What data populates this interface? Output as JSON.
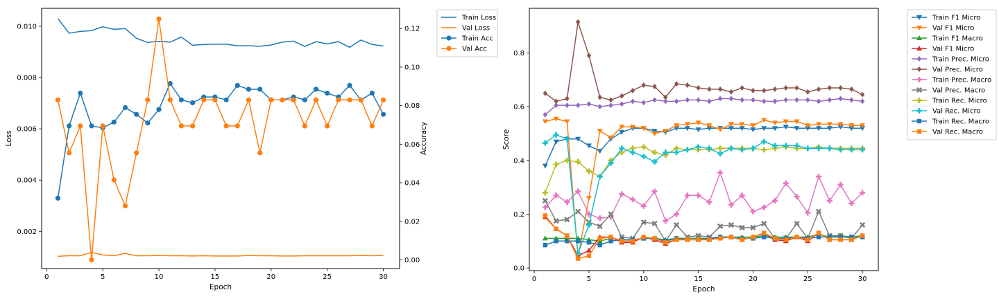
{
  "chart_data": [
    {
      "type": "line",
      "xlabel": "Epoch",
      "ylabel": "Loss",
      "ylabel_right": "Accuracy",
      "xlim": [
        -0.45,
        31.45
      ],
      "ylim": [
        0.00055,
        0.0107
      ],
      "ylim_right": [
        -0.0045,
        0.1305
      ],
      "xticks": [
        0,
        5,
        10,
        15,
        20,
        25,
        30
      ],
      "yticks": [
        0.002,
        0.004,
        0.006,
        0.008,
        0.01
      ],
      "ytick_labels": [
        "0.002",
        "0.004",
        "0.006",
        "0.008",
        "0.010"
      ],
      "yticks_right": [
        0.0,
        0.02,
        0.04,
        0.06,
        0.08,
        0.1,
        0.12
      ],
      "ytick_labels_right": [
        "0.00",
        "0.02",
        "0.04",
        "0.06",
        "0.08",
        "0.10",
        "0.12"
      ],
      "grid": false,
      "legend": "outside upper right",
      "x": [
        1,
        2,
        3,
        4,
        5,
        6,
        7,
        8,
        9,
        10,
        11,
        12,
        13,
        14,
        15,
        16,
        17,
        18,
        19,
        20,
        21,
        22,
        23,
        24,
        25,
        26,
        27,
        28,
        29,
        30
      ],
      "series": [
        {
          "name": "Train Loss",
          "axis": "left",
          "color": "#1f77b4",
          "marker": "none",
          "values": [
            0.0103,
            0.00973,
            0.0098,
            0.00983,
            0.00998,
            0.00988,
            0.00991,
            0.00953,
            0.00937,
            0.00941,
            0.00938,
            0.00958,
            0.00926,
            0.00929,
            0.0093,
            0.0093,
            0.00924,
            0.00924,
            0.00922,
            0.00927,
            0.00938,
            0.00942,
            0.00921,
            0.0094,
            0.00931,
            0.0094,
            0.00918,
            0.00946,
            0.00929,
            0.00923
          ]
        },
        {
          "name": "Val Loss",
          "axis": "left",
          "color": "#ff7f0e",
          "marker": "none",
          "values": [
            0.00103,
            0.00105,
            0.00105,
            0.00118,
            0.00108,
            0.00105,
            0.00114,
            0.00105,
            0.00105,
            0.00106,
            0.00105,
            0.00105,
            0.00104,
            0.00105,
            0.00104,
            0.00104,
            0.00104,
            0.00106,
            0.00105,
            0.00105,
            0.00104,
            0.00104,
            0.00105,
            0.00105,
            0.00105,
            0.00105,
            0.00105,
            0.00106,
            0.00105,
            0.00106
          ]
        },
        {
          "name": "Train Acc",
          "axis": "right",
          "color": "#1f77b4",
          "marker": "circle",
          "values": [
            0.032,
            0.0695,
            0.0865,
            0.0695,
            0.0685,
            0.0715,
            0.079,
            0.0755,
            0.071,
            0.078,
            0.0915,
            0.083,
            0.0815,
            0.0845,
            0.0845,
            0.083,
            0.0905,
            0.0885,
            0.0885,
            0.083,
            0.083,
            0.0845,
            0.083,
            0.0885,
            0.0865,
            0.0845,
            0.0905,
            0.083,
            0.0865,
            0.0755
          ]
        },
        {
          "name": "Val Acc",
          "axis": "right",
          "color": "#ff7f0e",
          "marker": "circle",
          "values": [
            0.083,
            0.0555,
            0.0695,
            0.0,
            0.0695,
            0.0415,
            0.028,
            0.0555,
            0.083,
            0.125,
            0.083,
            0.0695,
            0.0695,
            0.083,
            0.083,
            0.0695,
            0.0695,
            0.083,
            0.0555,
            0.083,
            0.083,
            0.083,
            0.0695,
            0.083,
            0.0695,
            0.083,
            0.083,
            0.083,
            0.0695,
            0.083
          ]
        }
      ]
    },
    {
      "type": "line",
      "xlabel": "Epoch",
      "ylabel": "Score",
      "xlim": [
        -0.45,
        31.45
      ],
      "ylim": [
        -0.01,
        0.966
      ],
      "xticks": [
        0,
        5,
        10,
        15,
        20,
        25,
        30
      ],
      "yticks": [
        0.0,
        0.2,
        0.4,
        0.6,
        0.8
      ],
      "ytick_labels": [
        "0.0",
        "0.2",
        "0.4",
        "0.6",
        "0.8"
      ],
      "grid": false,
      "legend": "outside upper right",
      "x": [
        1,
        2,
        3,
        4,
        5,
        6,
        7,
        8,
        9,
        10,
        11,
        12,
        13,
        14,
        15,
        16,
        17,
        18,
        19,
        20,
        21,
        22,
        23,
        24,
        25,
        26,
        27,
        28,
        29,
        30
      ],
      "series": [
        {
          "name": "Train F1 Micro",
          "color": "#1f77b4",
          "marker": "tri_down",
          "values": [
            0.38,
            0.47,
            0.48,
            0.48,
            0.455,
            0.435,
            0.48,
            0.505,
            0.52,
            0.52,
            0.51,
            0.505,
            0.52,
            0.52,
            0.515,
            0.52,
            0.52,
            0.52,
            0.52,
            0.515,
            0.52,
            0.52,
            0.525,
            0.52,
            0.52,
            0.52,
            0.52,
            0.525,
            0.52,
            0.52
          ]
        },
        {
          "name": "Val F1 Micro",
          "color": "#ff7f0e",
          "marker": "tri_down",
          "values": [
            0.545,
            0.555,
            0.545,
            0.04,
            0.26,
            0.51,
            0.485,
            0.525,
            0.525,
            0.52,
            0.5,
            0.51,
            0.53,
            0.535,
            0.54,
            0.53,
            0.515,
            0.535,
            0.535,
            0.53,
            0.55,
            0.54,
            0.545,
            0.545,
            0.53,
            0.535,
            0.535,
            0.535,
            0.53,
            0.53
          ]
        },
        {
          "name": "Train F1 Macro",
          "color": "#2ca02c",
          "marker": "tri_up",
          "values": [
            0.11,
            0.11,
            0.11,
            0.11,
            0.105,
            0.1,
            0.11,
            0.105,
            0.105,
            0.11,
            0.11,
            0.105,
            0.11,
            0.11,
            0.11,
            0.11,
            0.115,
            0.115,
            0.115,
            0.115,
            0.12,
            0.115,
            0.115,
            0.115,
            0.115,
            0.125,
            0.115,
            0.12,
            0.115,
            0.12
          ]
        },
        {
          "name": "Val F1 Micro",
          "color": "#d62728",
          "marker": "tri_up",
          "values": [
            0.19,
            0.145,
            0.12,
            0.045,
            0.065,
            0.115,
            0.115,
            0.095,
            0.095,
            0.115,
            0.105,
            0.09,
            0.105,
            0.105,
            0.105,
            0.105,
            0.115,
            0.115,
            0.105,
            0.115,
            0.13,
            0.105,
            0.1,
            0.115,
            0.1,
            0.13,
            0.105,
            0.105,
            0.105,
            0.12
          ]
        },
        {
          "name": "Train Prec. Micro",
          "color": "#9467bd",
          "marker": "diamond",
          "values": [
            0.57,
            0.605,
            0.605,
            0.605,
            0.61,
            0.6,
            0.605,
            0.61,
            0.62,
            0.615,
            0.625,
            0.62,
            0.62,
            0.625,
            0.625,
            0.62,
            0.63,
            0.63,
            0.625,
            0.625,
            0.62,
            0.62,
            0.625,
            0.625,
            0.625,
            0.62,
            0.625,
            0.63,
            0.625,
            0.62
          ]
        },
        {
          "name": "Val Prec. Micro",
          "color": "#8c564b",
          "marker": "diamond",
          "values": [
            0.65,
            0.62,
            0.63,
            0.915,
            0.79,
            0.635,
            0.625,
            0.64,
            0.66,
            0.68,
            0.675,
            0.635,
            0.685,
            0.68,
            0.67,
            0.665,
            0.665,
            0.655,
            0.67,
            0.66,
            0.66,
            0.665,
            0.67,
            0.67,
            0.655,
            0.665,
            0.67,
            0.67,
            0.665,
            0.645
          ]
        },
        {
          "name": "Train Prec. Macro",
          "color": "#e377c2",
          "marker": "plus",
          "values": [
            0.225,
            0.27,
            0.245,
            0.285,
            0.2,
            0.185,
            0.19,
            0.275,
            0.255,
            0.23,
            0.285,
            0.175,
            0.2,
            0.27,
            0.27,
            0.245,
            0.355,
            0.235,
            0.27,
            0.21,
            0.225,
            0.25,
            0.315,
            0.265,
            0.205,
            0.34,
            0.25,
            0.31,
            0.24,
            0.28
          ]
        },
        {
          "name": "Val Prec. Macro",
          "color": "#7f7f7f",
          "marker": "x",
          "values": [
            0.25,
            0.175,
            0.18,
            0.21,
            0.17,
            0.155,
            0.2,
            0.115,
            0.11,
            0.17,
            0.165,
            0.1,
            0.16,
            0.115,
            0.12,
            0.115,
            0.155,
            0.16,
            0.15,
            0.15,
            0.165,
            0.11,
            0.11,
            0.165,
            0.11,
            0.21,
            0.12,
            0.12,
            0.11,
            0.16
          ]
        },
        {
          "name": "Train Rec. Micro",
          "color": "#bcbd22",
          "marker": "plus",
          "values": [
            0.28,
            0.385,
            0.4,
            0.395,
            0.36,
            0.34,
            0.4,
            0.43,
            0.445,
            0.45,
            0.43,
            0.42,
            0.445,
            0.44,
            0.44,
            0.44,
            0.445,
            0.445,
            0.445,
            0.445,
            0.44,
            0.445,
            0.45,
            0.445,
            0.445,
            0.45,
            0.445,
            0.445,
            0.445,
            0.445
          ]
        },
        {
          "name": "Val Rec. Micro",
          "color": "#17becf",
          "marker": "plus",
          "values": [
            0.465,
            0.495,
            0.48,
            0.055,
            0.16,
            0.34,
            0.39,
            0.445,
            0.43,
            0.415,
            0.395,
            0.43,
            0.43,
            0.44,
            0.45,
            0.445,
            0.425,
            0.445,
            0.44,
            0.445,
            0.47,
            0.455,
            0.455,
            0.455,
            0.445,
            0.445,
            0.445,
            0.44,
            0.44,
            0.44
          ]
        },
        {
          "name": "Train Rec. Macro",
          "color": "#1f77b4",
          "marker": "square",
          "values": [
            0.085,
            0.1,
            0.1,
            0.1,
            0.095,
            0.085,
            0.1,
            0.105,
            0.105,
            0.11,
            0.11,
            0.1,
            0.11,
            0.105,
            0.105,
            0.11,
            0.115,
            0.115,
            0.11,
            0.11,
            0.115,
            0.11,
            0.11,
            0.115,
            0.11,
            0.115,
            0.115,
            0.115,
            0.115,
            0.115
          ]
        },
        {
          "name": "Val Rec. Macro",
          "color": "#ff7f0e",
          "marker": "square",
          "values": [
            0.195,
            0.145,
            0.12,
            0.035,
            0.045,
            0.11,
            0.115,
            0.1,
            0.1,
            0.115,
            0.11,
            0.095,
            0.105,
            0.105,
            0.105,
            0.105,
            0.11,
            0.115,
            0.105,
            0.115,
            0.13,
            0.11,
            0.105,
            0.115,
            0.105,
            0.13,
            0.105,
            0.105,
            0.105,
            0.12
          ]
        }
      ]
    }
  ]
}
